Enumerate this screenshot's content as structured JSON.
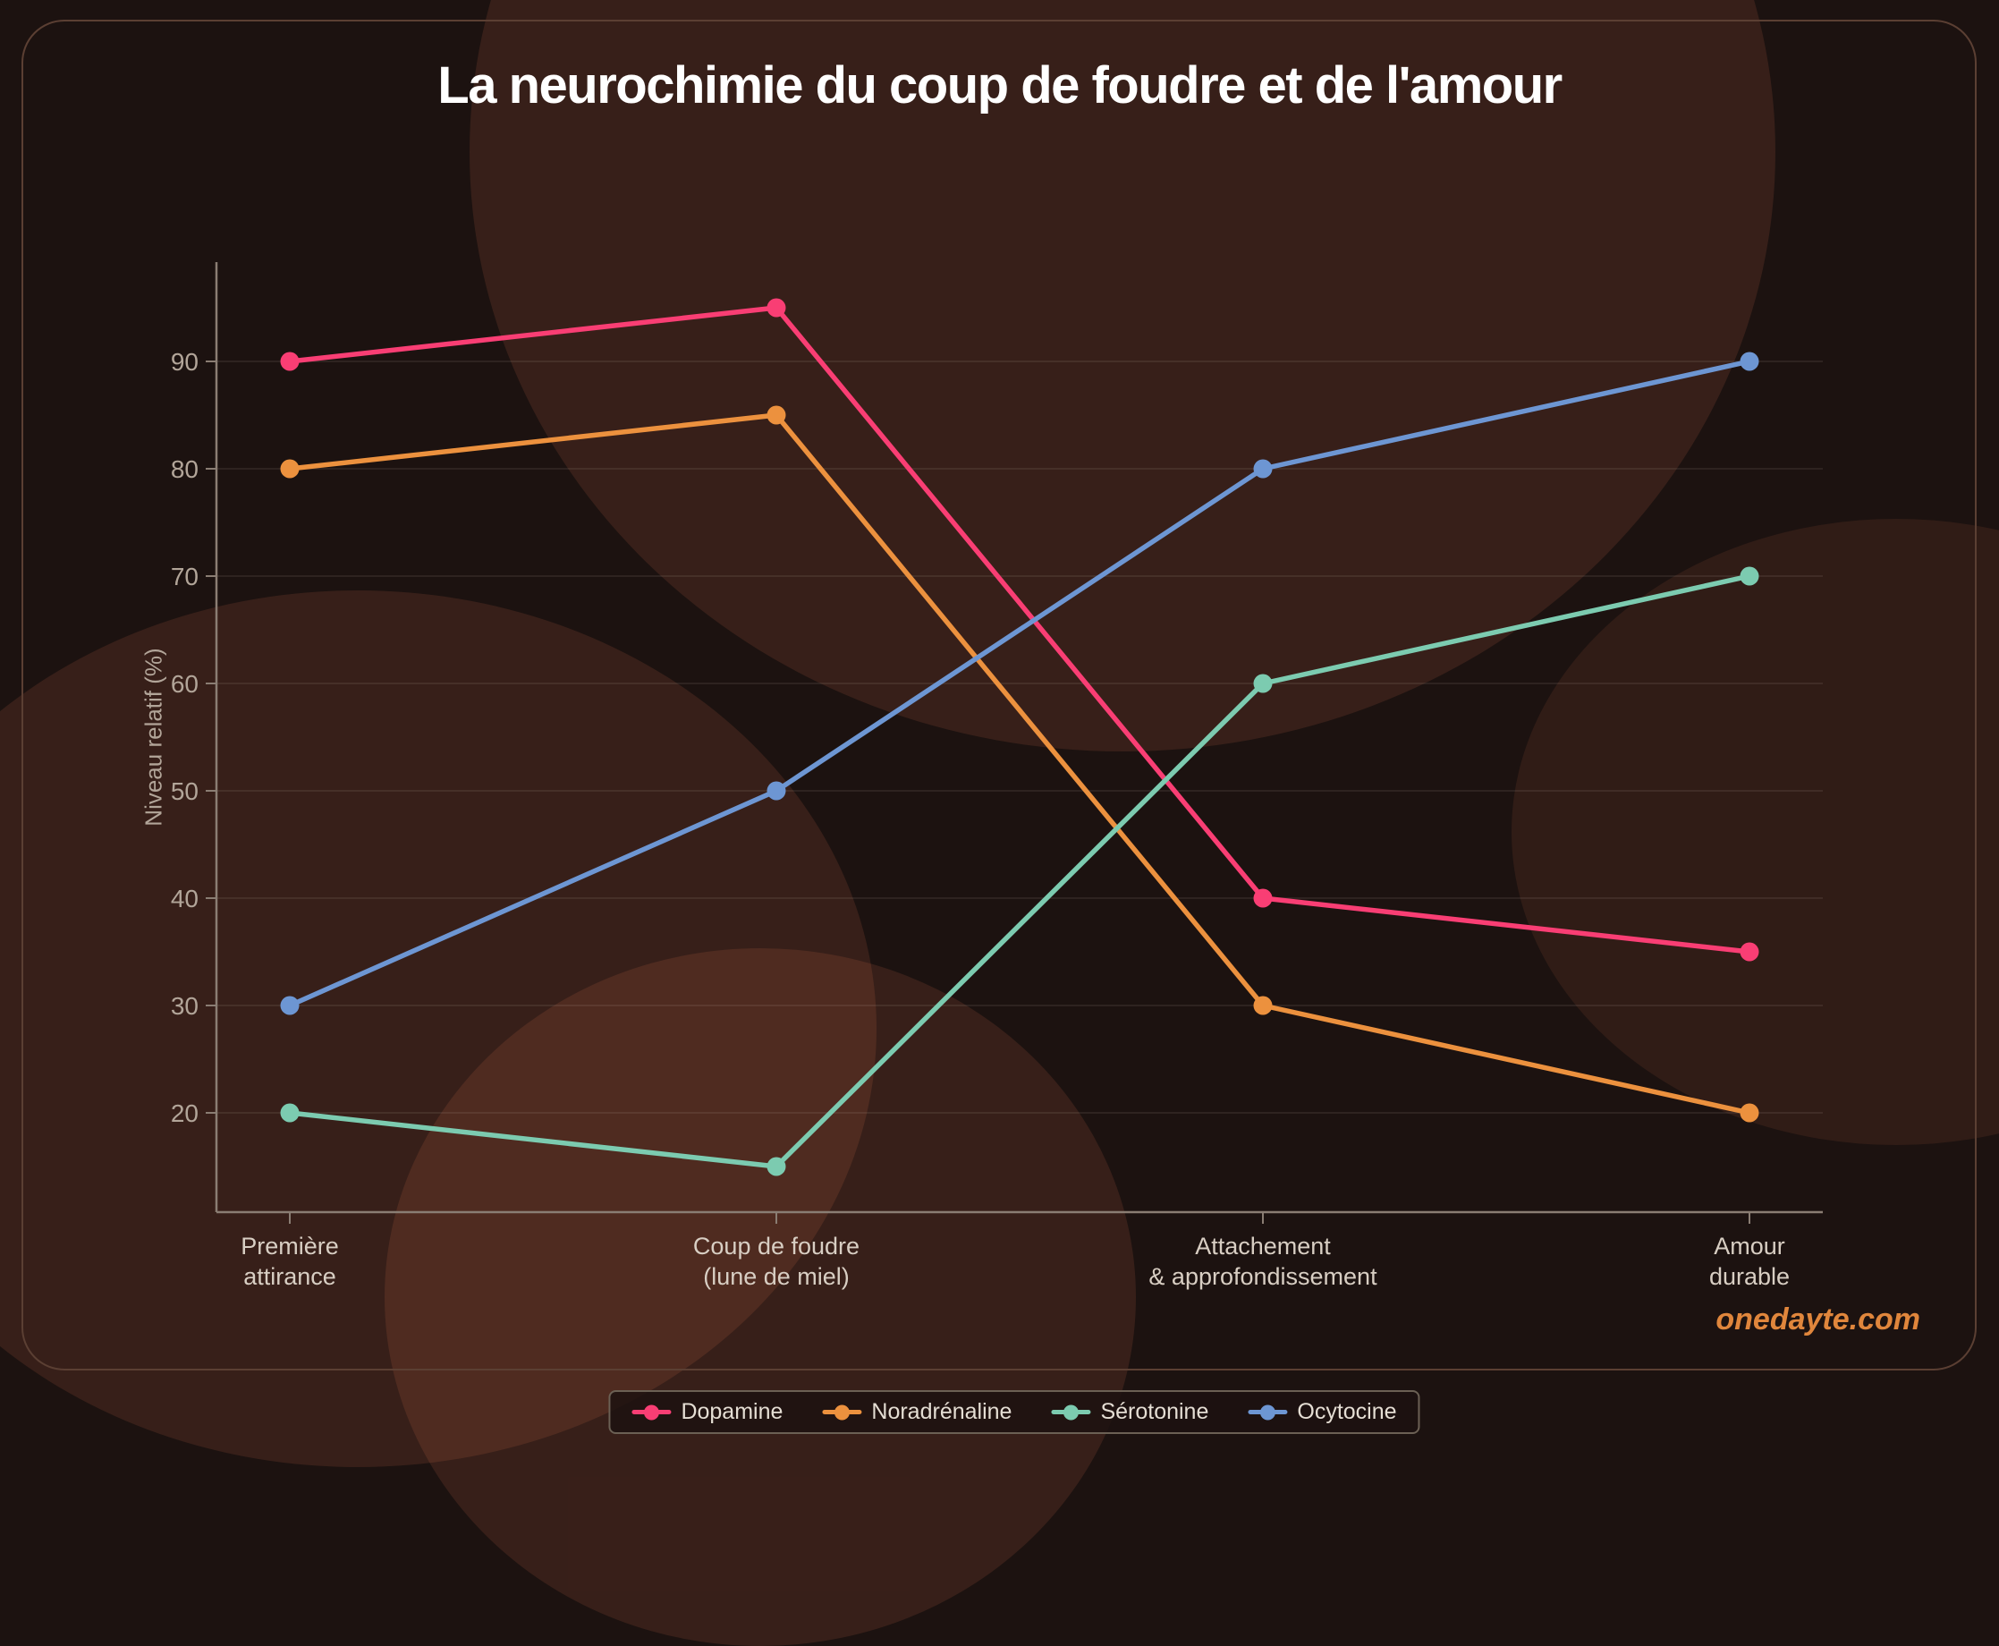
{
  "title": "La neurochimie du coup de foudre et de l'amour",
  "watermark": {
    "text": "onedayte.com",
    "color": "#E0863C"
  },
  "chart_data": {
    "type": "line",
    "title": "La neurochimie du coup de foudre et de l'amour",
    "categories": [
      [
        "Première",
        "attirance"
      ],
      [
        "Coup de foudre",
        "(lune de miel)"
      ],
      [
        "Attachement",
        "& approfondissement"
      ],
      [
        "Amour",
        "durable"
      ]
    ],
    "series": [
      {
        "name": "Dopamine",
        "color": "#F93E74",
        "values": [
          90,
          95,
          40,
          35
        ]
      },
      {
        "name": "Noradrénaline",
        "color": "#EC913E",
        "values": [
          80,
          85,
          30,
          20
        ]
      },
      {
        "name": "Sérotonine",
        "color": "#7CCBB0",
        "values": [
          20,
          15,
          60,
          70
        ]
      },
      {
        "name": "Ocytocine",
        "color": "#6D96D3",
        "values": [
          30,
          50,
          80,
          90
        ]
      }
    ],
    "xlabel": "",
    "ylabel": "Niveau relatif (%)",
    "yticks": [
      20,
      30,
      40,
      50,
      60,
      70,
      80,
      90
    ],
    "ylim": [
      10.75,
      99.25
    ],
    "grid": true,
    "legend_position": "bottom-center"
  }
}
